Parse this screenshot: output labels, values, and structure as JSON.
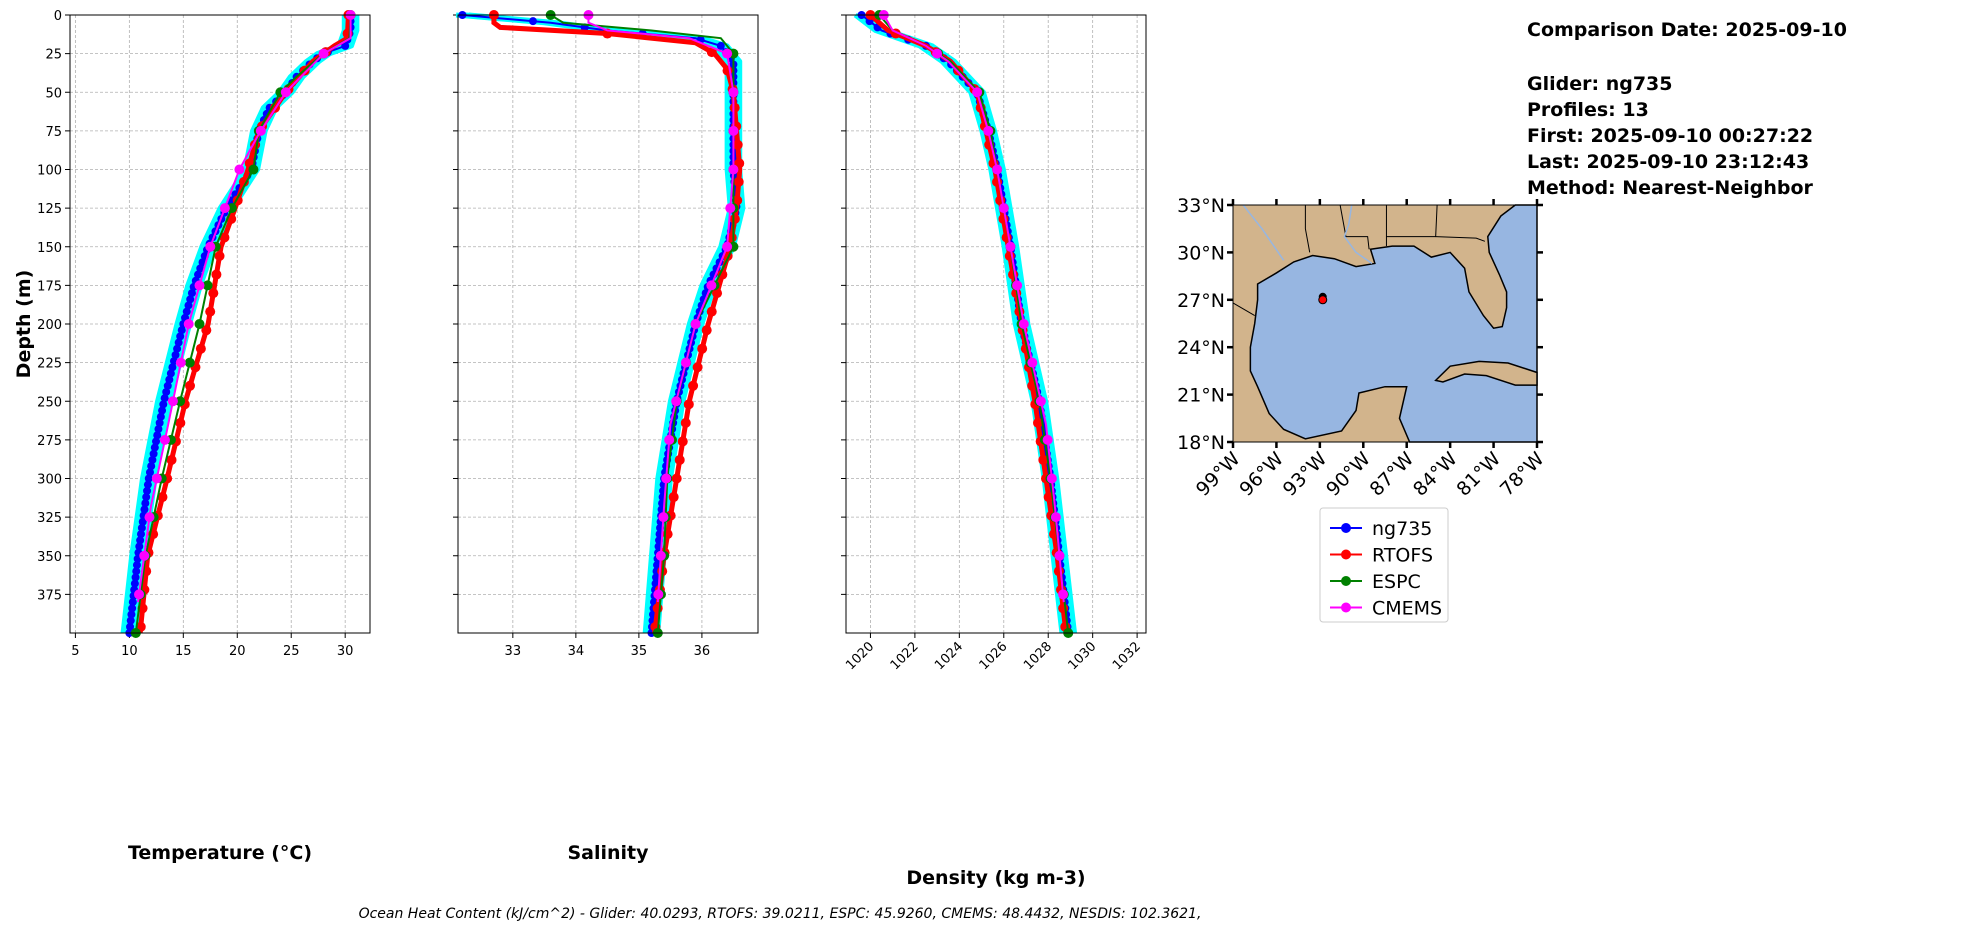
{
  "info": {
    "comparison_date": "Comparison Date: 2025-09-10",
    "glider": "Glider: ng735",
    "profiles": "Profiles: 13",
    "first": "First: 2025-09-10 00:27:22",
    "last": "Last: 2025-09-10 23:12:43",
    "method": "Method: Nearest-Neighbor"
  },
  "footer": "Ocean Heat Content (kJ/cm^2) - Glider: 40.0293,  RTOFS: 39.0211,  ESPC: 45.9260,  CMEMS: 48.4432,  NESDIS: 102.3621,",
  "colors": {
    "ng735": "#0000ff",
    "RTOFS": "#ff0000",
    "ESPC": "#008000",
    "CMEMS": "#ff00ff",
    "glider_profiles": "#00ffff",
    "land": "#d2b48c",
    "water": "#97b6e1"
  },
  "chart_data": [
    {
      "type": "line",
      "title": "",
      "xlabel": "Temperature (°C)",
      "ylabel": "Depth (m)",
      "xlim": [
        4.5,
        32.3
      ],
      "ylim": [
        400,
        0
      ],
      "xticks": [
        5,
        10,
        15,
        20,
        25,
        30
      ],
      "yticks": [
        0,
        25,
        50,
        75,
        100,
        125,
        150,
        175,
        200,
        225,
        250,
        275,
        300,
        325,
        350,
        375
      ],
      "grid": true,
      "series": [
        {
          "name": "ng735",
          "depth": [
            0,
            10,
            20,
            25,
            30,
            40,
            50,
            60,
            75,
            100,
            125,
            150,
            175,
            200,
            250,
            300,
            350,
            400
          ],
          "values": [
            30.5,
            30.5,
            30,
            28,
            27,
            25.5,
            24.5,
            23,
            22,
            21.3,
            19,
            17.3,
            16,
            15,
            13.2,
            11.8,
            10.8,
            10
          ]
        },
        {
          "name": "RTOFS",
          "depth": [
            0,
            15,
            20,
            30,
            50,
            75,
            100,
            125,
            150,
            200,
            250,
            300,
            350,
            400
          ],
          "values": [
            30.3,
            30.2,
            29,
            27,
            24.5,
            22,
            21,
            19.8,
            18.5,
            17.3,
            15.2,
            13.5,
            11.7,
            11
          ]
        },
        {
          "name": "ESPC",
          "depth": [
            0,
            15,
            25,
            40,
            50,
            75,
            100,
            125,
            150,
            200,
            250,
            300,
            350,
            400
          ],
          "values": [
            30.5,
            30.4,
            28,
            25.5,
            24,
            22,
            21.5,
            19.5,
            18,
            16.5,
            14.7,
            13,
            11.5,
            10.6
          ]
        },
        {
          "name": "CMEMS",
          "depth": [
            0,
            15,
            25,
            50,
            77,
            100,
            150,
            200,
            265,
            318,
            380
          ],
          "values": [
            30.5,
            30.5,
            28,
            24.5,
            22,
            20.2,
            17.5,
            15.5,
            13.6,
            12,
            10.8
          ]
        }
      ]
    },
    {
      "type": "line",
      "title": "",
      "xlabel": "Salinity",
      "ylabel": "",
      "xlim": [
        32.13,
        36.89
      ],
      "ylim": [
        400,
        0
      ],
      "xticks": [
        33,
        34,
        35,
        36
      ],
      "yticks": [
        0,
        25,
        50,
        75,
        100,
        125,
        150,
        175,
        200,
        225,
        250,
        275,
        300,
        325,
        350,
        375
      ],
      "grid": true,
      "series": [
        {
          "name": "ng735",
          "depth": [
            0,
            5,
            10,
            15,
            20,
            30,
            50,
            100,
            125,
            150,
            175,
            200,
            250,
            300,
            350,
            400
          ],
          "values": [
            32.2,
            33.6,
            34.5,
            35.9,
            36.3,
            36.5,
            36.5,
            36.5,
            36.55,
            36.4,
            36.1,
            35.9,
            35.6,
            35.4,
            35.3,
            35.2
          ]
        },
        {
          "name": "RTOFS",
          "depth": [
            0,
            5,
            8,
            12,
            18,
            25,
            35,
            50,
            100,
            125,
            150,
            200,
            250,
            300,
            350,
            400
          ],
          "values": [
            32.7,
            32.7,
            32.8,
            34.5,
            35.9,
            36.2,
            36.4,
            36.5,
            36.6,
            36.55,
            36.45,
            36.1,
            35.8,
            35.6,
            35.4,
            35.25
          ]
        },
        {
          "name": "ESPC",
          "depth": [
            0,
            5,
            10,
            15,
            25,
            50,
            100,
            150,
            200,
            250,
            300,
            350,
            400
          ],
          "values": [
            33.6,
            33.8,
            35.2,
            36.3,
            36.5,
            36.5,
            36.5,
            36.5,
            35.9,
            35.6,
            35.45,
            35.4,
            35.3
          ]
        },
        {
          "name": "CMEMS",
          "depth": [
            0,
            5,
            10,
            15,
            25,
            50,
            100,
            150,
            200,
            265,
            318,
            380
          ],
          "values": [
            34.2,
            34.2,
            34.5,
            35.8,
            36.4,
            36.5,
            36.5,
            36.4,
            35.9,
            35.5,
            35.4,
            35.3
          ]
        }
      ]
    },
    {
      "type": "line",
      "title": "",
      "xlabel": "Density (kg m-3)",
      "ylabel": "",
      "xlim": [
        1018.9,
        1032.4
      ],
      "ylim": [
        400,
        0
      ],
      "xticks": [
        1020,
        1022,
        1024,
        1026,
        1028,
        1030,
        1032
      ],
      "yticks": [
        0,
        25,
        50,
        75,
        100,
        125,
        150,
        175,
        200,
        225,
        250,
        275,
        300,
        325,
        350,
        375
      ],
      "grid": true,
      "series": [
        {
          "name": "ng735",
          "depth": [
            0,
            10,
            20,
            30,
            50,
            75,
            100,
            150,
            200,
            250,
            300,
            350,
            400
          ],
          "values": [
            1019.6,
            1020.5,
            1022.5,
            1023.5,
            1024.8,
            1025.3,
            1025.7,
            1026.3,
            1026.8,
            1027.6,
            1028.1,
            1028.5,
            1028.9
          ]
        },
        {
          "name": "RTOFS",
          "depth": [
            0,
            10,
            20,
            30,
            50,
            100,
            150,
            200,
            250,
            300,
            350,
            400
          ],
          "values": [
            1020.0,
            1020.8,
            1022.5,
            1023.6,
            1024.8,
            1025.6,
            1026.2,
            1026.8,
            1027.4,
            1027.9,
            1028.4,
            1028.8
          ]
        },
        {
          "name": "ESPC",
          "depth": [
            0,
            10,
            20,
            30,
            50,
            75,
            100,
            125,
            150,
            200,
            250,
            300,
            350,
            400
          ],
          "values": [
            1020.4,
            1021,
            1022.5,
            1023.6,
            1024.9,
            1025.4,
            1025.7,
            1026,
            1026.3,
            1026.8,
            1027.6,
            1028.1,
            1028.5,
            1028.9
          ]
        },
        {
          "name": "CMEMS",
          "depth": [
            0,
            10,
            20,
            30,
            50,
            75,
            100,
            150,
            200,
            265,
            318,
            380
          ],
          "values": [
            1020.6,
            1021,
            1022.5,
            1023.5,
            1024.8,
            1025.3,
            1025.7,
            1026.3,
            1026.9,
            1027.9,
            1028.3,
            1028.7
          ]
        }
      ]
    }
  ],
  "map": {
    "lat_ticks": [
      "18°N",
      "21°N",
      "24°N",
      "27°N",
      "30°N",
      "33°N"
    ],
    "lon_ticks": [
      "99°W",
      "96°W",
      "93°W",
      "90°W",
      "87°W",
      "84°W",
      "81°W",
      "78°W"
    ],
    "glider_position": {
      "lon": -92.8,
      "lat": 27.0
    }
  },
  "legend": [
    "ng735",
    "RTOFS",
    "ESPC",
    "CMEMS"
  ]
}
